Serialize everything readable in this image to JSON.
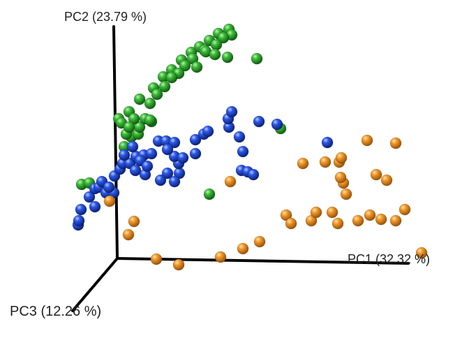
{
  "chart_data": {
    "type": "scatter",
    "subtype": "3d-pca",
    "axes": {
      "x": {
        "label": "PC1 (32.32 %)"
      },
      "y": {
        "label": "PC2 (23.79 %)"
      },
      "z": {
        "label": "PC3 (12.26 %)"
      }
    },
    "grid": false,
    "legend": "none",
    "series": [
      {
        "color": "#2da02d",
        "points": [
          [
            160,
            150,
            0
          ],
          [
            175,
            140,
            0
          ],
          [
            190,
            122,
            0
          ],
          [
            210,
            106,
            0
          ],
          [
            224,
            90,
            0
          ],
          [
            236,
            80,
            0
          ],
          [
            250,
            66,
            0
          ],
          [
            264,
            55,
            0
          ],
          [
            276,
            47,
            0
          ],
          [
            290,
            38,
            0
          ],
          [
            303,
            28,
            0
          ],
          [
            318,
            22,
            0
          ],
          [
            322,
            30,
            0
          ],
          [
            310,
            34,
            0
          ],
          [
            300,
            44,
            0
          ],
          [
            283,
            52,
            0
          ],
          [
            266,
            64,
            0
          ],
          [
            255,
            74,
            0
          ],
          [
            246,
            85,
            0
          ],
          [
            236,
            91,
            0
          ],
          [
            226,
            104,
            0
          ],
          [
            215,
            115,
            0
          ],
          [
            205,
            128,
            0
          ],
          [
            285,
            54,
            0
          ],
          [
            298,
            58,
            0
          ],
          [
            272,
            76,
            0
          ],
          [
            316,
            62,
            0
          ],
          [
            358,
            64,
            0
          ],
          [
            168,
            190,
            0
          ],
          [
            178,
            176,
            0
          ],
          [
            188,
            172,
            0
          ],
          [
            190,
            162,
            0
          ],
          [
            198,
            150,
            0
          ],
          [
            207,
            154,
            0
          ],
          [
            205,
            152,
            0
          ],
          [
            171,
            172,
            0
          ],
          [
            164,
            156,
            0
          ],
          [
            182,
            150,
            0
          ],
          [
            175,
            162,
            0
          ],
          [
            392,
            164,
            0
          ],
          [
            107,
            244,
            0
          ],
          [
            118,
            242,
            0
          ],
          [
            290,
            258,
            0
          ]
        ]
      },
      {
        "color": "#1f4fdd",
        "points": [
          [
            102,
            302,
            0
          ],
          [
            103,
            296,
            0
          ],
          [
            106,
            280,
            0
          ],
          [
            126,
            276,
            0
          ],
          [
            118,
            262,
            0
          ],
          [
            126,
            250,
            0
          ],
          [
            132,
            248,
            0
          ],
          [
            136,
            240,
            0
          ],
          [
            142,
            256,
            0
          ],
          [
            153,
            256,
            0
          ],
          [
            146,
            248,
            0
          ],
          [
            154,
            232,
            0
          ],
          [
            162,
            222,
            0
          ],
          [
            166,
            214,
            0
          ],
          [
            176,
            214,
            0
          ],
          [
            168,
            202,
            0
          ],
          [
            185,
            204,
            0
          ],
          [
            196,
            202,
            0
          ],
          [
            184,
            224,
            0
          ],
          [
            198,
            230,
            0
          ],
          [
            220,
            238,
            0
          ],
          [
            230,
            228,
            0
          ],
          [
            247,
            228,
            0
          ],
          [
            240,
            240,
            0
          ],
          [
            246,
            214,
            0
          ],
          [
            240,
            204,
            0
          ],
          [
            217,
            182,
            0
          ],
          [
            228,
            182,
            0
          ],
          [
            240,
            184,
            0
          ],
          [
            230,
            194,
            0
          ],
          [
            252,
            206,
            0
          ],
          [
            207,
            200,
            0
          ],
          [
            270,
            200,
            0
          ],
          [
            270,
            180,
            0
          ],
          [
            282,
            172,
            0
          ],
          [
            288,
            168,
            0
          ],
          [
            318,
            162,
            0
          ],
          [
            333,
            176,
            0
          ],
          [
            338,
            197,
            0
          ],
          [
            336,
            224,
            0
          ],
          [
            345,
            226,
            0
          ],
          [
            353,
            230,
            0
          ],
          [
            361,
            154,
            0
          ],
          [
            387,
            158,
            0
          ],
          [
            459,
            184,
            0
          ],
          [
            317,
            150,
            0
          ],
          [
            322,
            140,
            0
          ],
          [
            191,
            210,
            0
          ],
          [
            180,
            190,
            0
          ],
          [
            201,
            218,
            0
          ]
        ]
      },
      {
        "color": "#f0921c",
        "points": [
          [
            147,
            268,
            0
          ],
          [
            182,
            297,
            0
          ],
          [
            174,
            316,
            0
          ],
          [
            214,
            351,
            0
          ],
          [
            246,
            359,
            0
          ],
          [
            306,
            348,
            0
          ],
          [
            338,
            336,
            0
          ],
          [
            362,
            326,
            0
          ],
          [
            320,
            240,
            0
          ],
          [
            400,
            288,
            0
          ],
          [
            407,
            300,
            0
          ],
          [
            436,
            296,
            0
          ],
          [
            456,
            212,
            0
          ],
          [
            476,
            212,
            0
          ],
          [
            479,
            206,
            0
          ],
          [
            516,
            181,
            0
          ],
          [
            557,
            185,
            0
          ],
          [
            529,
            230,
            0
          ],
          [
            486,
            258,
            0
          ],
          [
            482,
            242,
            0
          ],
          [
            478,
            234,
            0
          ],
          [
            544,
            238,
            0
          ],
          [
            443,
            284,
            0
          ],
          [
            466,
            284,
            0
          ],
          [
            474,
            300,
            0
          ],
          [
            503,
            296,
            0
          ],
          [
            520,
            288,
            0
          ],
          [
            536,
            294,
            0
          ],
          [
            557,
            296,
            0
          ],
          [
            570,
            280,
            0
          ],
          [
            594,
            342,
            0
          ],
          [
            424,
            214,
            0
          ]
        ]
      }
    ]
  }
}
